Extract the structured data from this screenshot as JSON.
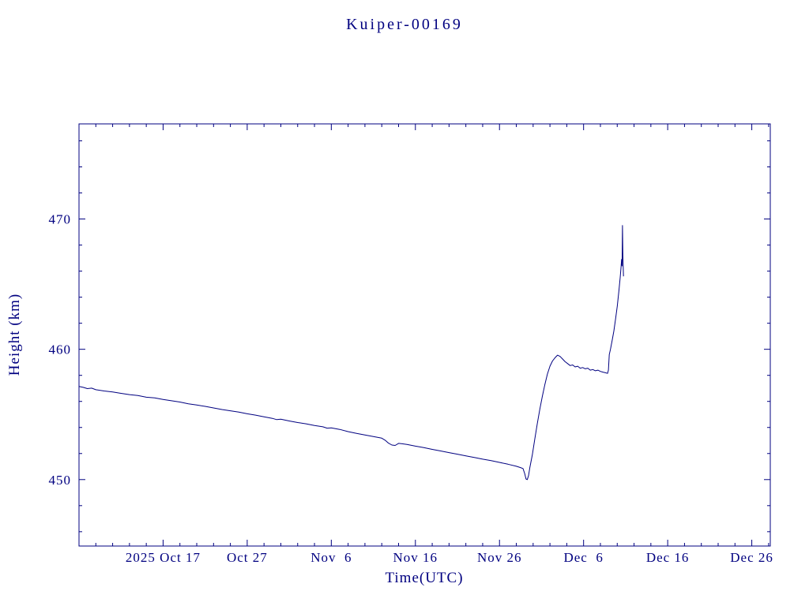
{
  "chart_data": {
    "type": "line",
    "title": "Kuiper-00169",
    "xlabel": "Time(UTC)",
    "ylabel": "Height (km)",
    "color": "#000080",
    "background": "#ffffff",
    "grid": false,
    "legend": "none",
    "x_unit": "days since 2025-10-07 00:00 UTC",
    "xlim": [
      0,
      82.2
    ],
    "ylim": [
      444.9,
      477.3
    ],
    "x_minor_step": 2,
    "y_minor_step": 2,
    "x_ticks": [
      {
        "day": 10,
        "label": "2025 Oct 17"
      },
      {
        "day": 20,
        "label": "Oct 27"
      },
      {
        "day": 30,
        "label": "Nov  6"
      },
      {
        "day": 40,
        "label": "Nov 16"
      },
      {
        "day": 50,
        "label": "Nov 26"
      },
      {
        "day": 60,
        "label": "Dec  6"
      },
      {
        "day": 70,
        "label": "Dec 16"
      },
      {
        "day": 80,
        "label": "Dec 26"
      }
    ],
    "y_ticks": [
      450,
      460,
      470
    ],
    "series": [
      {
        "name": "orbital-height",
        "color": "#000080",
        "points": [
          [
            0,
            457.15
          ],
          [
            0.5,
            457.08
          ],
          [
            1,
            456.98
          ],
          [
            1.5,
            457.02
          ],
          [
            2,
            456.9
          ],
          [
            3,
            456.8
          ],
          [
            4,
            456.72
          ],
          [
            5,
            456.62
          ],
          [
            6,
            456.52
          ],
          [
            7,
            456.45
          ],
          [
            8,
            456.32
          ],
          [
            9,
            456.27
          ],
          [
            10,
            456.15
          ],
          [
            11,
            456.05
          ],
          [
            12,
            455.95
          ],
          [
            13,
            455.82
          ],
          [
            14,
            455.72
          ],
          [
            15,
            455.62
          ],
          [
            16,
            455.5
          ],
          [
            17,
            455.38
          ],
          [
            18,
            455.28
          ],
          [
            19,
            455.18
          ],
          [
            20,
            455.05
          ],
          [
            21,
            454.95
          ],
          [
            22,
            454.82
          ],
          [
            23,
            454.7
          ],
          [
            23.5,
            454.6
          ],
          [
            24,
            454.63
          ],
          [
            25,
            454.5
          ],
          [
            26,
            454.38
          ],
          [
            27,
            454.28
          ],
          [
            28,
            454.15
          ],
          [
            29,
            454.05
          ],
          [
            29.5,
            453.95
          ],
          [
            30,
            453.97
          ],
          [
            31,
            453.85
          ],
          [
            32,
            453.68
          ],
          [
            33,
            453.55
          ],
          [
            34,
            453.42
          ],
          [
            35,
            453.3
          ],
          [
            36,
            453.18
          ],
          [
            36.4,
            453.02
          ],
          [
            36.8,
            452.8
          ],
          [
            37.2,
            452.65
          ],
          [
            37.6,
            452.62
          ],
          [
            38,
            452.78
          ],
          [
            38.5,
            452.74
          ],
          [
            39,
            452.7
          ],
          [
            40,
            452.57
          ],
          [
            41,
            452.45
          ],
          [
            42,
            452.32
          ],
          [
            43,
            452.2
          ],
          [
            44,
            452.07
          ],
          [
            45,
            451.95
          ],
          [
            46,
            451.82
          ],
          [
            47,
            451.7
          ],
          [
            48,
            451.57
          ],
          [
            49,
            451.45
          ],
          [
            50,
            451.32
          ],
          [
            51,
            451.18
          ],
          [
            52,
            451.02
          ],
          [
            52.5,
            450.92
          ],
          [
            52.8,
            450.85
          ],
          [
            53,
            450.45
          ],
          [
            53.15,
            450.05
          ],
          [
            53.3,
            450.0
          ],
          [
            53.45,
            450.3
          ],
          [
            53.6,
            450.9
          ],
          [
            53.9,
            451.9
          ],
          [
            54.2,
            453.1
          ],
          [
            54.5,
            454.3
          ],
          [
            54.8,
            455.4
          ],
          [
            55.1,
            456.4
          ],
          [
            55.4,
            457.3
          ],
          [
            55.7,
            458.1
          ],
          [
            56,
            458.7
          ],
          [
            56.3,
            459.1
          ],
          [
            56.6,
            459.35
          ],
          [
            56.9,
            459.55
          ],
          [
            57.2,
            459.45
          ],
          [
            57.5,
            459.25
          ],
          [
            57.8,
            459.05
          ],
          [
            58.1,
            458.9
          ],
          [
            58.4,
            458.75
          ],
          [
            58.7,
            458.8
          ],
          [
            59,
            458.65
          ],
          [
            59.3,
            458.7
          ],
          [
            59.6,
            458.55
          ],
          [
            59.9,
            458.6
          ],
          [
            60.2,
            458.5
          ],
          [
            60.5,
            458.55
          ],
          [
            60.8,
            458.4
          ],
          [
            61.1,
            458.45
          ],
          [
            61.4,
            458.35
          ],
          [
            61.7,
            458.4
          ],
          [
            62,
            458.3
          ],
          [
            62.3,
            458.25
          ],
          [
            62.6,
            458.2
          ],
          [
            62.85,
            458.15
          ],
          [
            62.95,
            458.4
          ],
          [
            63.05,
            459.6
          ],
          [
            63.2,
            460.0
          ],
          [
            63.4,
            460.7
          ],
          [
            63.6,
            461.4
          ],
          [
            63.8,
            462.3
          ],
          [
            64,
            463.3
          ],
          [
            64.2,
            464.5
          ],
          [
            64.35,
            465.5
          ],
          [
            64.45,
            466.3
          ],
          [
            64.52,
            466.9
          ],
          [
            64.58,
            466.4
          ],
          [
            64.62,
            469.5
          ],
          [
            64.67,
            467.2
          ],
          [
            64.75,
            465.6
          ]
        ]
      }
    ]
  }
}
